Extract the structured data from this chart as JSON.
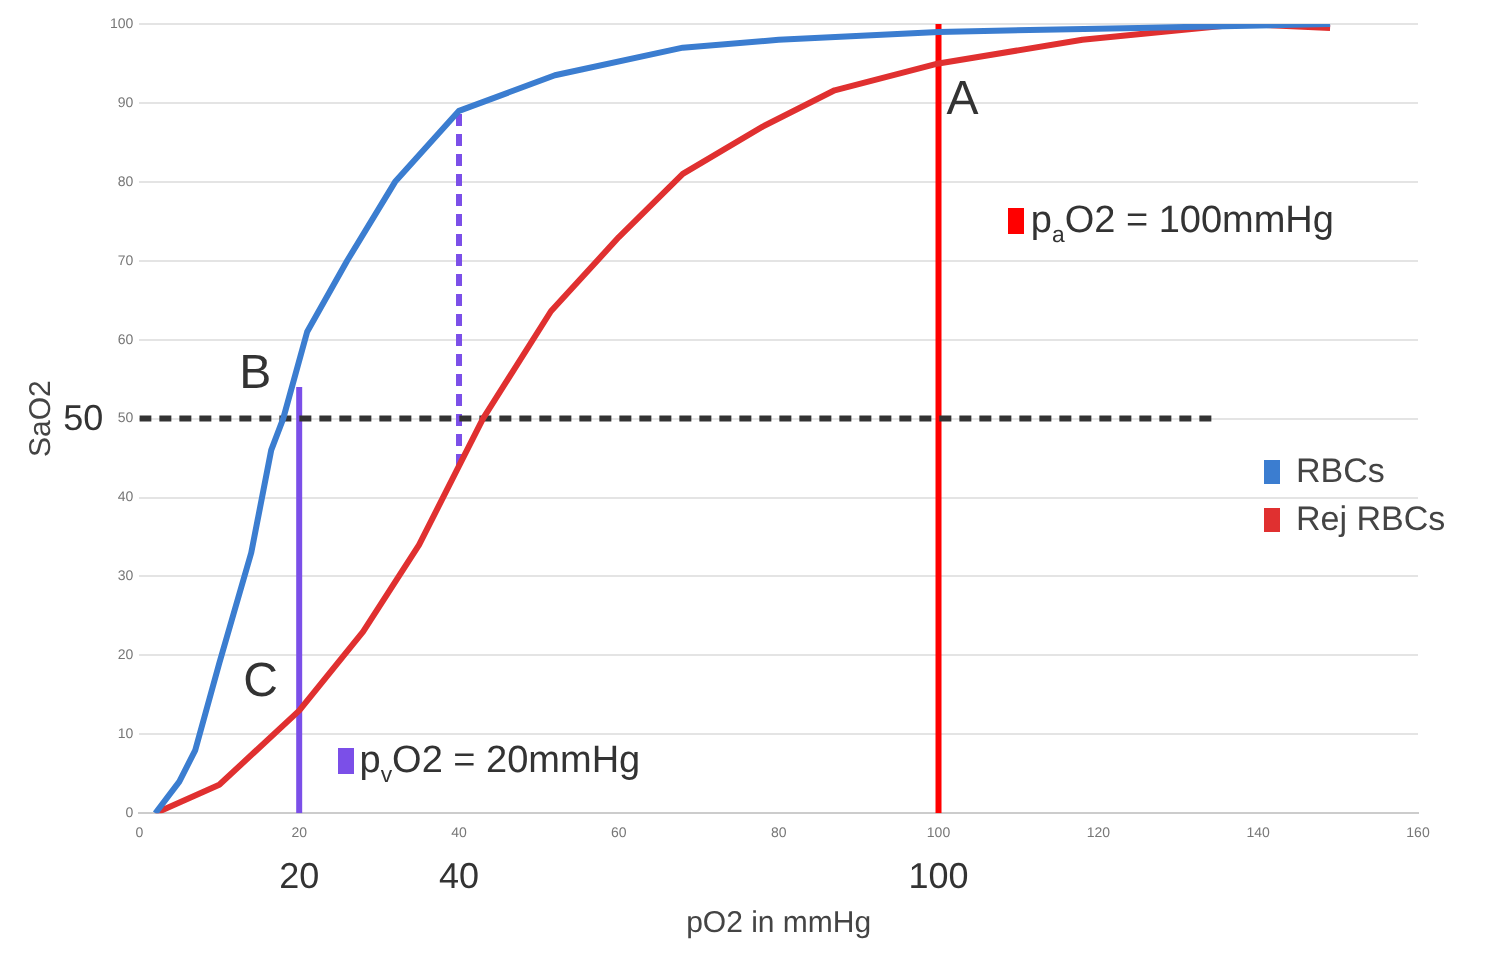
{
  "chart_data": {
    "type": "line",
    "xlabel": "pO2 in mmHg",
    "ylabel": "SaO2",
    "xlim": [
      0,
      160
    ],
    "xticks": [
      0,
      20,
      40,
      60,
      80,
      100,
      120,
      140,
      160
    ],
    "ylim": [
      0,
      100
    ],
    "yticks": [
      0,
      10,
      20,
      30,
      40,
      50,
      60,
      70,
      80,
      90,
      100
    ],
    "grid": "y",
    "legend": "right",
    "marker": "none",
    "line_style": "solid",
    "series": [
      {
        "name": "RBCs",
        "color": "#3b7dd0",
        "x": [
          2,
          5,
          7,
          10,
          14,
          16.5,
          18,
          21,
          26,
          32,
          40,
          52,
          68,
          80,
          100,
          125,
          149
        ],
        "values": [
          0,
          4,
          8,
          19,
          33,
          46,
          50,
          61,
          70,
          80,
          89,
          93.5,
          97,
          98,
          99,
          99.5,
          100
        ]
      },
      {
        "name": "Rej RBCs",
        "color": "#e03030",
        "x": [
          2,
          10,
          20,
          28,
          35,
          40,
          43,
          51.5,
          60,
          68,
          78,
          87,
          100,
          118,
          138,
          149
        ],
        "values": [
          0,
          3.6,
          13,
          23,
          34,
          44,
          50,
          63.6,
          73,
          81,
          87,
          91.6,
          95,
          98,
          100,
          99.5
        ]
      },
      {
        "color": "#333333",
        "line_style": "dashed",
        "x": [
          0,
          135
        ],
        "values": [
          50,
          50
        ]
      },
      {
        "color": "#ff0000",
        "x": [
          100,
          100
        ],
        "values": [
          0,
          100
        ]
      },
      {
        "color": "#7b4fe8",
        "x": [
          20,
          20
        ],
        "values": [
          0,
          54
        ]
      },
      {
        "color": "#7b4fe8",
        "line_style": "dashed",
        "x": [
          40,
          40
        ],
        "values": [
          44,
          89
        ]
      }
    ],
    "annotations": [
      {
        "text": "A",
        "x": 100,
        "y": 95
      },
      {
        "text": "B",
        "x": 18,
        "y": 50
      },
      {
        "text": "C",
        "x": 20,
        "y": 13
      },
      "p$_{a}$O2 = 100mmHg",
      "p$_{v}$O2 = 20mmHg",
      "20",
      "40",
      "100",
      "50"
    ]
  }
}
